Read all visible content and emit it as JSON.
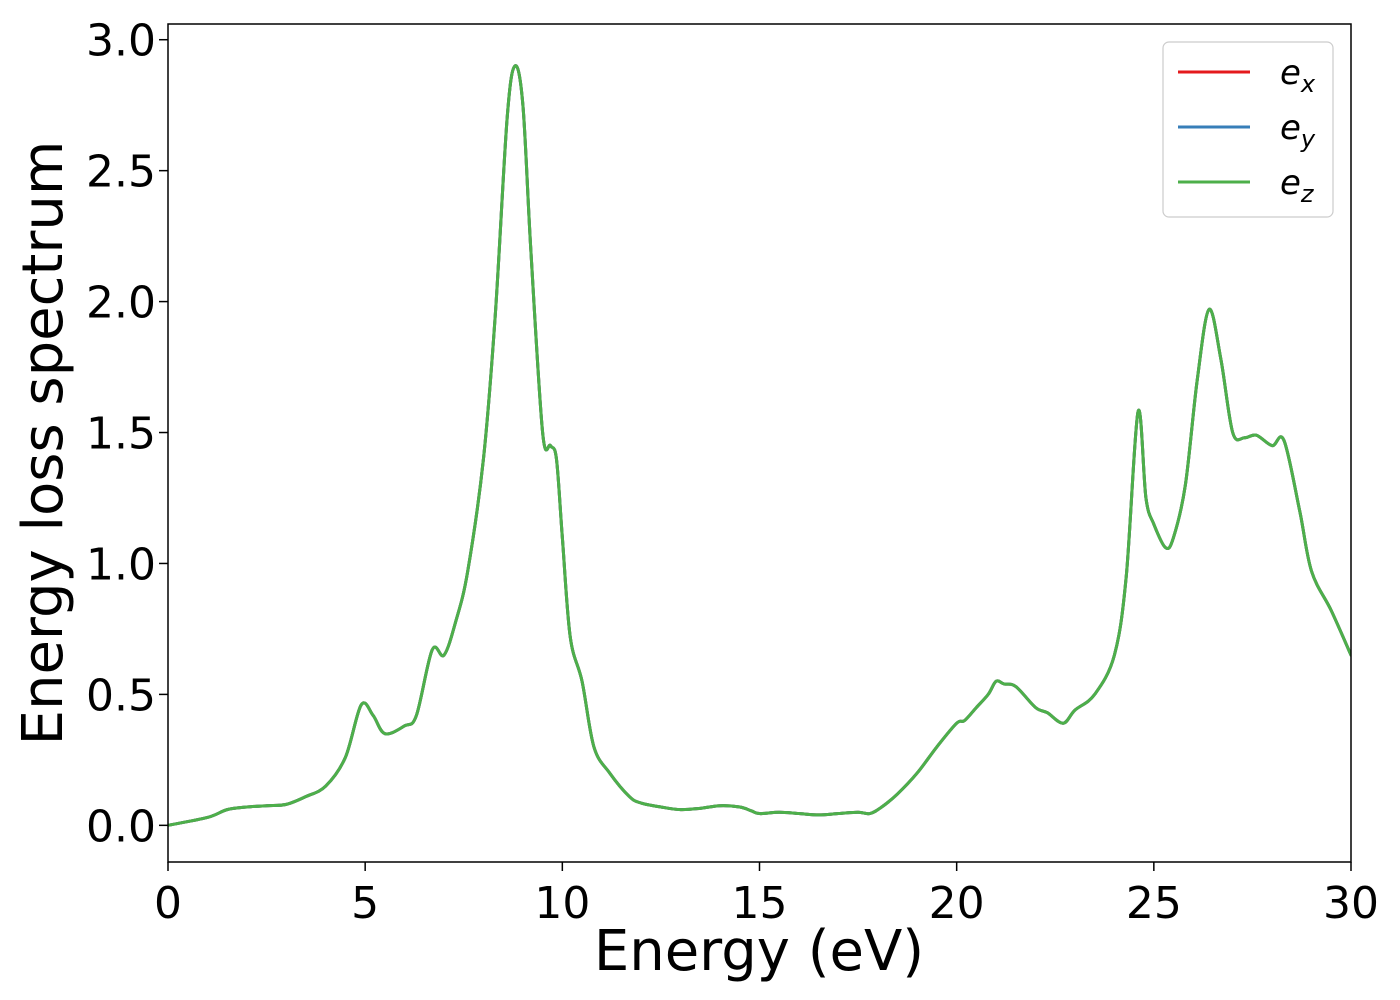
{
  "chart_data": {
    "type": "line",
    "title": "",
    "xlabel": "Energy (eV)",
    "ylabel": "Energy loss spectrum",
    "xlim": [
      0,
      30
    ],
    "ylim": [
      -0.14,
      3.06
    ],
    "xticks": [
      0,
      5,
      10,
      15,
      20,
      25,
      30
    ],
    "xtick_labels": [
      "0",
      "5",
      "10",
      "15",
      "20",
      "25",
      "30"
    ],
    "yticks": [
      0.0,
      0.5,
      1.0,
      1.5,
      2.0,
      2.5,
      3.0
    ],
    "ytick_labels": [
      "0.0",
      "0.5",
      "1.0",
      "1.5",
      "2.0",
      "2.5",
      "3.0"
    ],
    "grid": false,
    "legend_position": "top-right",
    "x": [
      0,
      1.0,
      1.5,
      2.0,
      2.5,
      3.0,
      3.5,
      4.0,
      4.5,
      4.9,
      5.2,
      5.5,
      6.0,
      6.3,
      6.7,
      7.0,
      7.3,
      7.6,
      8.0,
      8.3,
      8.6,
      8.8,
      9.0,
      9.2,
      9.5,
      9.7,
      9.85,
      10.0,
      10.2,
      10.5,
      10.8,
      11.2,
      11.7,
      12.0,
      12.5,
      13.0,
      13.5,
      14.0,
      14.5,
      14.8,
      15.0,
      15.5,
      16.0,
      16.5,
      17.0,
      17.5,
      17.8,
      18.1,
      18.5,
      19.0,
      19.5,
      20.0,
      20.2,
      20.5,
      20.8,
      21.0,
      21.2,
      21.5,
      22.0,
      22.3,
      22.7,
      23.0,
      23.5,
      24.0,
      24.3,
      24.6,
      24.8,
      25.0,
      25.3,
      25.5,
      25.8,
      26.1,
      26.4,
      26.7,
      27.0,
      27.3,
      27.6,
      28.0,
      28.3,
      28.7,
      29.0,
      29.5,
      30.0
    ],
    "series": [
      {
        "name": "e_x",
        "legend_main": "e",
        "legend_sub": "x",
        "color": "#e41a1c",
        "values": [
          0.0,
          0.03,
          0.06,
          0.07,
          0.075,
          0.08,
          0.11,
          0.15,
          0.26,
          0.46,
          0.42,
          0.35,
          0.38,
          0.42,
          0.67,
          0.65,
          0.78,
          0.97,
          1.4,
          1.95,
          2.7,
          2.9,
          2.75,
          2.2,
          1.5,
          1.45,
          1.4,
          1.1,
          0.72,
          0.55,
          0.3,
          0.2,
          0.11,
          0.085,
          0.07,
          0.06,
          0.065,
          0.075,
          0.07,
          0.055,
          0.045,
          0.05,
          0.045,
          0.04,
          0.045,
          0.05,
          0.045,
          0.07,
          0.12,
          0.2,
          0.3,
          0.39,
          0.4,
          0.45,
          0.5,
          0.55,
          0.54,
          0.53,
          0.45,
          0.43,
          0.39,
          0.44,
          0.5,
          0.65,
          0.95,
          1.58,
          1.25,
          1.15,
          1.06,
          1.1,
          1.3,
          1.7,
          1.97,
          1.78,
          1.5,
          1.48,
          1.49,
          1.45,
          1.47,
          1.2,
          0.97,
          0.82,
          0.65
        ]
      },
      {
        "name": "e_y",
        "legend_main": "e",
        "legend_sub": "y",
        "color": "#377eb8",
        "values": [
          0.0,
          0.03,
          0.06,
          0.07,
          0.075,
          0.08,
          0.11,
          0.15,
          0.26,
          0.46,
          0.42,
          0.35,
          0.38,
          0.42,
          0.67,
          0.65,
          0.78,
          0.97,
          1.4,
          1.95,
          2.7,
          2.9,
          2.75,
          2.2,
          1.5,
          1.45,
          1.4,
          1.1,
          0.72,
          0.55,
          0.3,
          0.2,
          0.11,
          0.085,
          0.07,
          0.06,
          0.065,
          0.075,
          0.07,
          0.055,
          0.045,
          0.05,
          0.045,
          0.04,
          0.045,
          0.05,
          0.045,
          0.07,
          0.12,
          0.2,
          0.3,
          0.39,
          0.4,
          0.45,
          0.5,
          0.55,
          0.54,
          0.53,
          0.45,
          0.43,
          0.39,
          0.44,
          0.5,
          0.65,
          0.95,
          1.58,
          1.25,
          1.15,
          1.06,
          1.1,
          1.3,
          1.7,
          1.97,
          1.78,
          1.5,
          1.48,
          1.49,
          1.45,
          1.47,
          1.2,
          0.97,
          0.82,
          0.65
        ]
      },
      {
        "name": "e_z",
        "legend_main": "e",
        "legend_sub": "z",
        "color": "#4daf4a",
        "values": [
          0.0,
          0.03,
          0.06,
          0.07,
          0.075,
          0.08,
          0.11,
          0.15,
          0.26,
          0.46,
          0.42,
          0.35,
          0.38,
          0.42,
          0.67,
          0.65,
          0.78,
          0.97,
          1.4,
          1.95,
          2.7,
          2.9,
          2.75,
          2.2,
          1.5,
          1.45,
          1.4,
          1.1,
          0.72,
          0.55,
          0.3,
          0.2,
          0.11,
          0.085,
          0.07,
          0.06,
          0.065,
          0.075,
          0.07,
          0.055,
          0.045,
          0.05,
          0.045,
          0.04,
          0.045,
          0.05,
          0.045,
          0.07,
          0.12,
          0.2,
          0.3,
          0.39,
          0.4,
          0.45,
          0.5,
          0.55,
          0.54,
          0.53,
          0.45,
          0.43,
          0.39,
          0.44,
          0.5,
          0.65,
          0.95,
          1.58,
          1.25,
          1.15,
          1.06,
          1.1,
          1.3,
          1.7,
          1.97,
          1.78,
          1.5,
          1.48,
          1.49,
          1.45,
          1.47,
          1.2,
          0.97,
          0.82,
          0.65
        ]
      }
    ]
  }
}
